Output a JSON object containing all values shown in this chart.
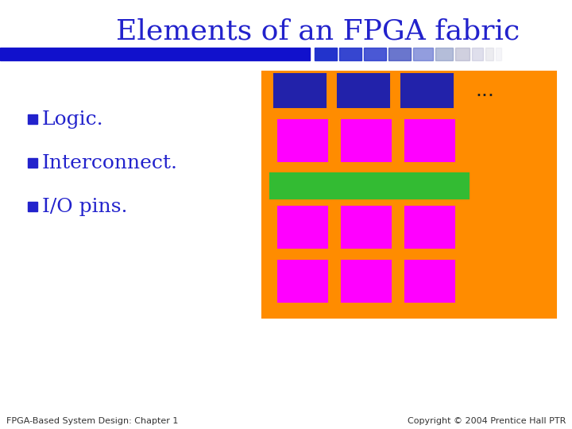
{
  "title": "Elements of an FPGA fabric",
  "title_color": "#2222CC",
  "title_fontsize": 26,
  "bullet_items": [
    "Logic.",
    "Interconnect.",
    "I/O pins."
  ],
  "bullet_color": "#2222CC",
  "bullet_fontsize": 18,
  "bullet_square_color": "#2222CC",
  "bg_color": "#FFFFFF",
  "header_bar_color": "#2222BB",
  "orange_box_color": "#FF8C00",
  "iob_color": "#2222AA",
  "iob_text_color": "#FFFFFF",
  "le_color": "#FF00FF",
  "le_text_color": "#000000",
  "interconnect_color": "#33BB33",
  "interconnect_text_color": "#000000",
  "footer_left": "FPGA-Based System Design: Chapter 1",
  "footer_right": "Copyright © 2004 Prentice Hall PTR",
  "footer_fontsize": 8,
  "bar_main_color": "#1111CC",
  "bar_block_colors": [
    "#2233CC",
    "#2233CC",
    "#2233CC",
    "#3344BB",
    "#5566CC",
    "#7788BB",
    "#9999BB",
    "#AAAACC",
    "#BBBBCC",
    "#CCCCDD"
  ],
  "bar_block_widths": [
    28,
    28,
    28,
    28,
    25,
    22,
    18,
    14,
    10,
    7
  ]
}
